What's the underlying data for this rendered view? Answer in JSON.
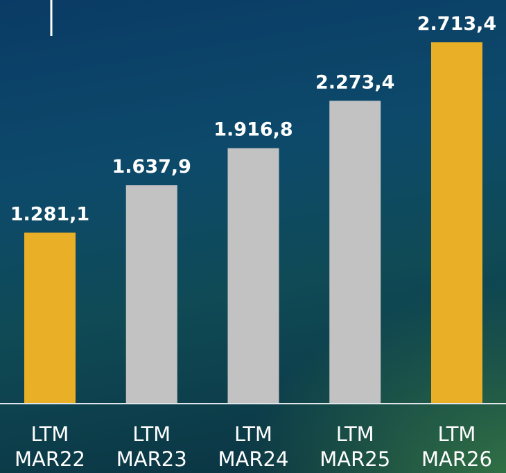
{
  "chart_data": {
    "type": "bar",
    "categories": [
      "LTM MAR22",
      "LTM MAR23",
      "LTM MAR24",
      "LTM MAR25",
      "LTM MAR26"
    ],
    "values": [
      1281.1,
      1637.9,
      1916.8,
      2273.4,
      2713.4
    ],
    "value_labels": [
      "1.281,1",
      "1.637,9",
      "1.916,8",
      "2.273,4",
      "2.713,4"
    ],
    "colors": [
      "#e9b027",
      "#c2c2c2",
      "#c2c2c2",
      "#c2c2c2",
      "#e9b027"
    ]
  }
}
